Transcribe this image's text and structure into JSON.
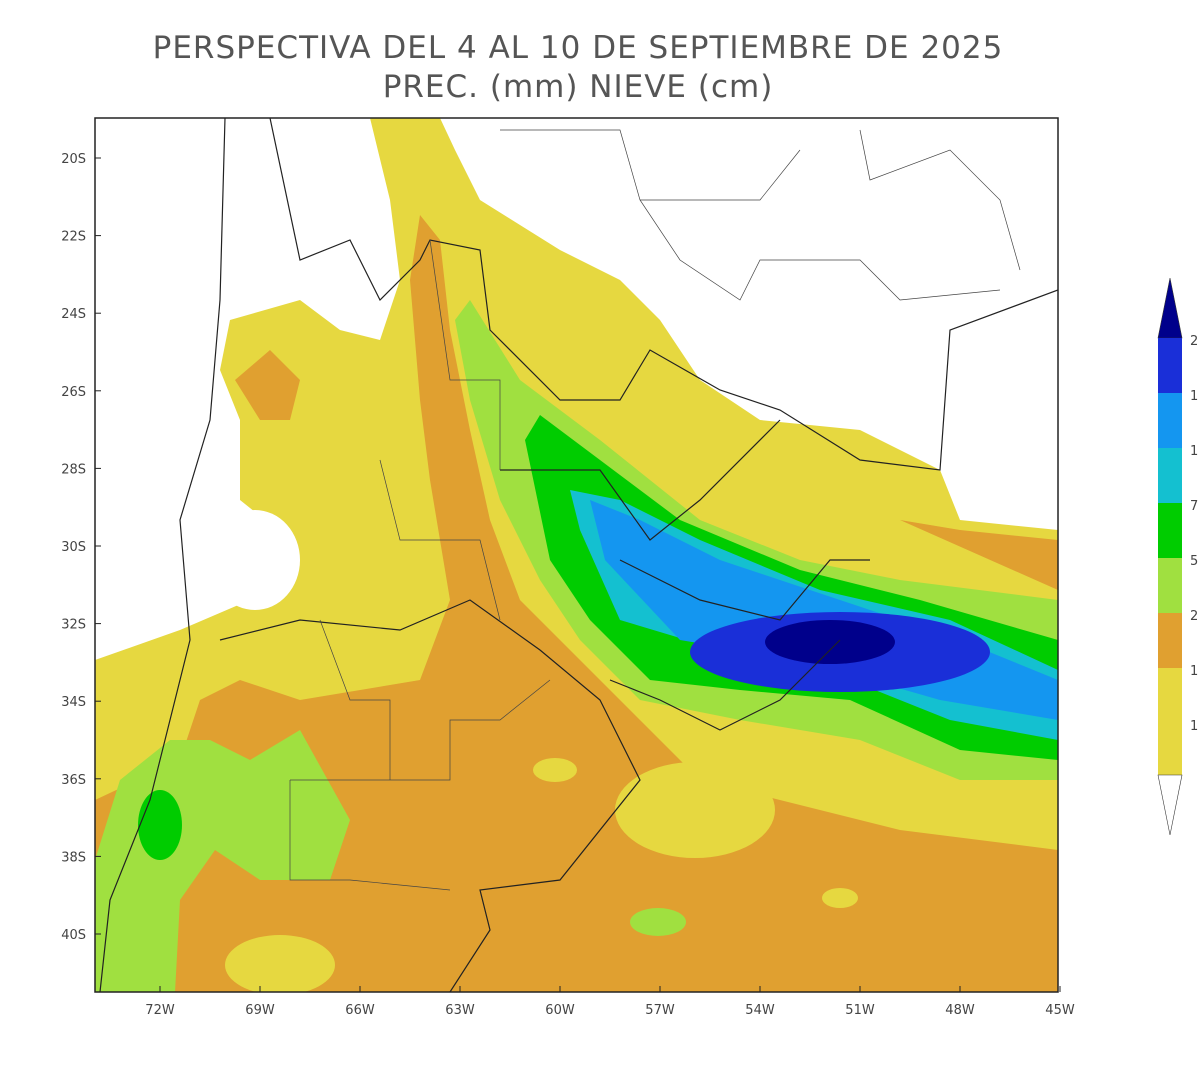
{
  "header": {
    "title": "PERSPECTIVA DEL 4 AL 10 DE SEPTIEMBRE DE 2025",
    "subtitle": "PREC. (mm) NIEVE (cm)"
  },
  "map": {
    "lat_labels": [
      "20S",
      "22S",
      "24S",
      "26S",
      "28S",
      "30S",
      "32S",
      "34S",
      "36S",
      "38S",
      "40S"
    ],
    "lon_labels": [
      "72W",
      "69W",
      "66W",
      "63W",
      "60W",
      "57W",
      "54W",
      "51W",
      "48W",
      "45W"
    ]
  },
  "legend": {
    "labels": [
      "2",
      "1",
      "1",
      "7",
      "5",
      "2",
      "1",
      "1"
    ]
  }
}
